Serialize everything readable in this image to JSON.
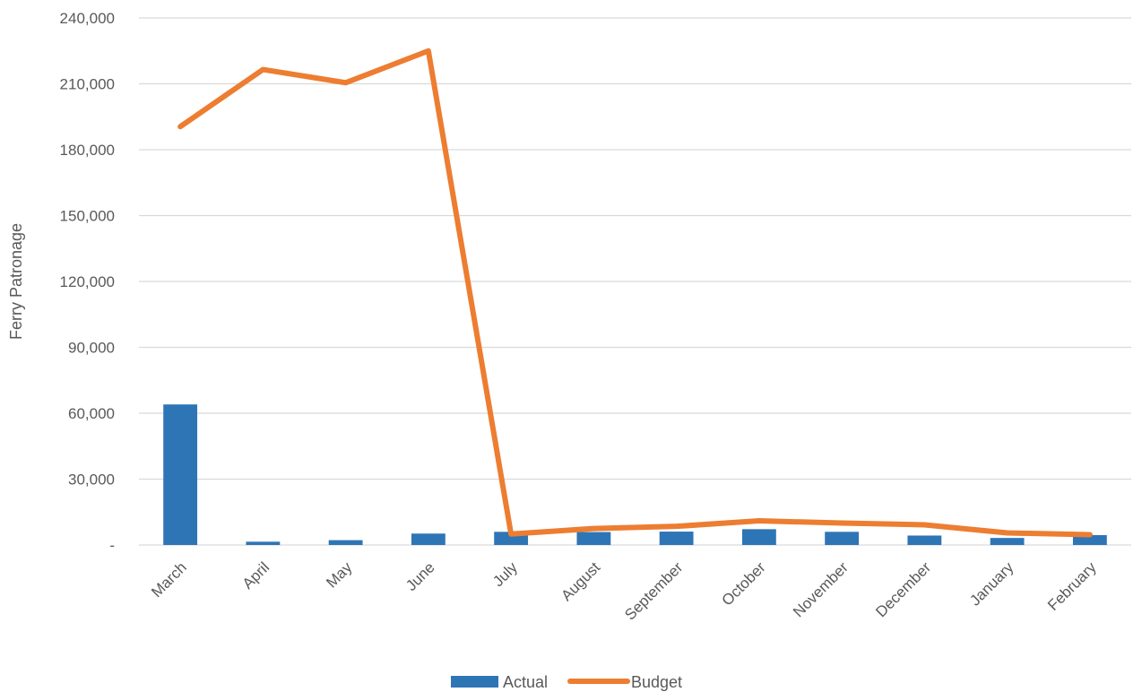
{
  "chart_data": {
    "type": "bar",
    "categories": [
      "March",
      "April",
      "May",
      "June",
      "July",
      "August",
      "September",
      "October",
      "November",
      "December",
      "January",
      "February"
    ],
    "series": [
      {
        "name": "Actual",
        "type": "bar",
        "color": "#2E75B6",
        "values": [
          64000,
          1500,
          2200,
          5200,
          6000,
          5900,
          6100,
          7200,
          6000,
          4300,
          3200,
          4500
        ]
      },
      {
        "name": "Budget",
        "type": "line",
        "color": "#ED7D31",
        "values": [
          190500,
          216500,
          210500,
          225000,
          5000,
          7500,
          8500,
          11000,
          10000,
          9200,
          5500,
          4700
        ]
      }
    ],
    "ylabel": "Ferry Patronage",
    "ylim": [
      0,
      240000
    ],
    "yticks": [
      0,
      30000,
      60000,
      90000,
      120000,
      150000,
      180000,
      210000,
      240000
    ],
    "ytick_labels": [
      "-",
      "30,000",
      "60,000",
      "90,000",
      "120,000",
      "150,000",
      "180,000",
      "210,000",
      "240,000"
    ],
    "grid": true,
    "legend_position": "bottom"
  }
}
